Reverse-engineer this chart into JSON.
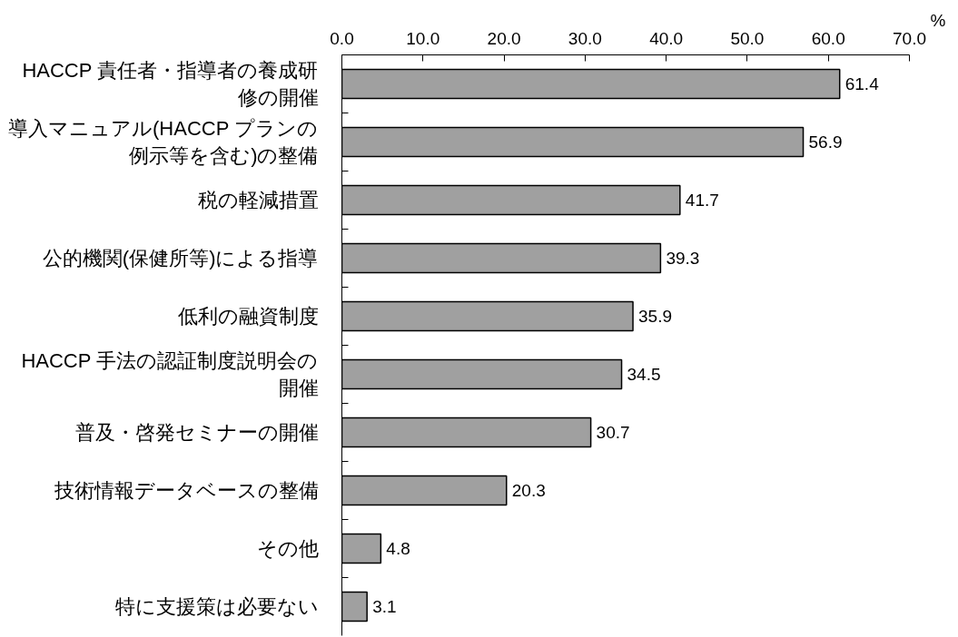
{
  "chart_data": {
    "type": "bar",
    "orientation": "horizontal",
    "xlabel": "%",
    "categories": [
      "HACCP 責任者・指導者の養成研修の開催",
      "導入マニュアル(HACCP プランの例示等を含む)の整備",
      "税の軽減措置",
      "公的機関(保健所等)による指導",
      "低利の融資制度",
      "HACCP 手法の認証制度説明会の開催",
      "普及・啓発セミナーの開催",
      "技術情報データベースの整備",
      "その他",
      "特に支援策は必要ない"
    ],
    "values": [
      61.4,
      56.9,
      41.7,
      39.3,
      35.9,
      34.5,
      30.7,
      20.3,
      4.8,
      3.1
    ],
    "color": "#a0a0a0",
    "xlim": [
      0,
      70
    ],
    "xticks": [
      {
        "value": 0,
        "label": "0.0"
      },
      {
        "value": 10,
        "label": "10.0"
      },
      {
        "value": 20,
        "label": "20.0"
      },
      {
        "value": 30,
        "label": "30.0"
      },
      {
        "value": 40,
        "label": "40.0"
      },
      {
        "value": 50,
        "label": "50.0"
      },
      {
        "value": 60,
        "label": "60.0"
      },
      {
        "value": 70,
        "label": "70.0"
      }
    ],
    "data_labels": true
  }
}
